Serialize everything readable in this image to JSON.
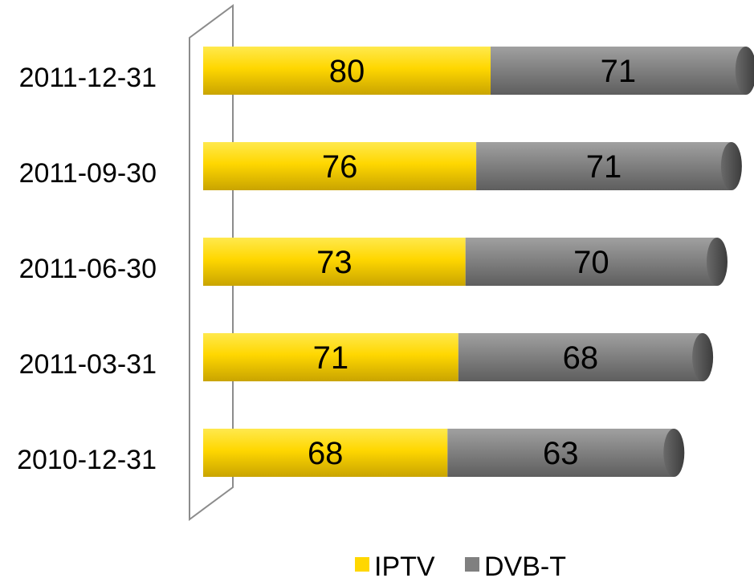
{
  "chart_data": {
    "type": "bar",
    "orientation": "horizontal",
    "stacked": true,
    "categories": [
      "2011-12-31",
      "2011-09-30",
      "2011-06-30",
      "2011-03-31",
      "2010-12-31"
    ],
    "series": [
      {
        "name": "IPTV",
        "values": [
          80,
          76,
          73,
          71,
          68
        ],
        "color": "#FFD700"
      },
      {
        "name": "DVB-T",
        "values": [
          71,
          71,
          70,
          68,
          63
        ],
        "color": "#808080"
      }
    ],
    "xlim": [
      0,
      155
    ],
    "grid": false,
    "legend_position": "bottom-right",
    "title": "",
    "xlabel": "",
    "ylabel": ""
  }
}
